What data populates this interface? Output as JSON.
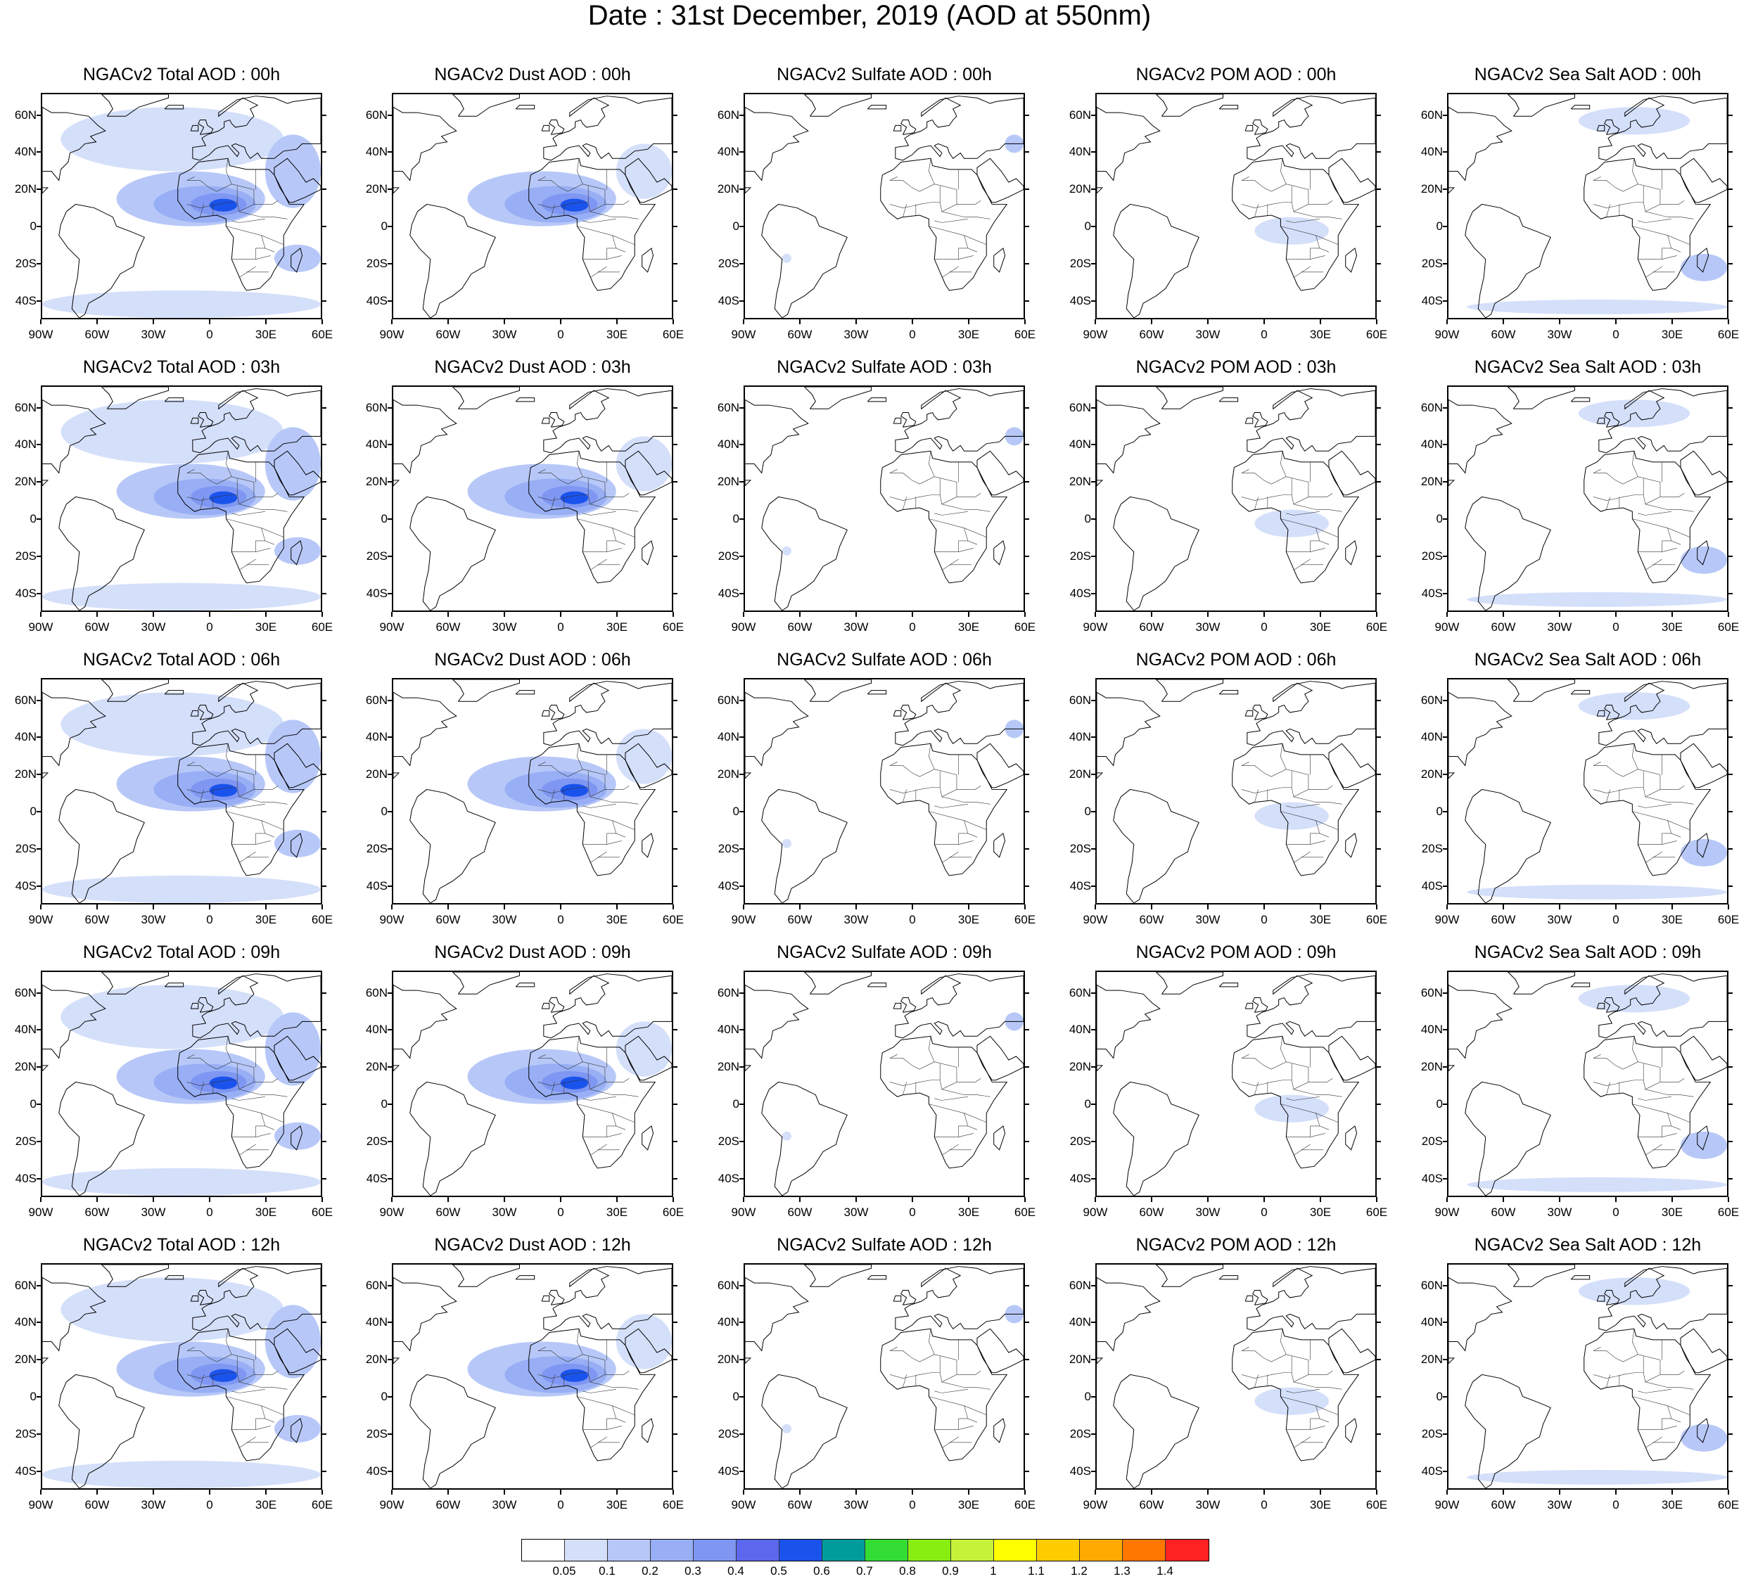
{
  "title": "Date : 31st December, 2019 (AOD at 550nm)",
  "axes": {
    "lat_labels": [
      "60N",
      "40N",
      "20N",
      "0",
      "20S",
      "40S"
    ],
    "lat_values": [
      60,
      40,
      20,
      0,
      -20,
      -40
    ],
    "lon_labels": [
      "90W",
      "60W",
      "30W",
      "0",
      "30E",
      "60E"
    ],
    "lon_values": [
      -90,
      -60,
      -30,
      0,
      30,
      60
    ],
    "lon_range": [
      -90,
      60
    ],
    "lat_range": [
      -50,
      72
    ]
  },
  "panels": [
    [
      "NGACv2 Total AOD : 00h",
      "NGACv2 Dust AOD : 00h",
      "NGACv2 Sulfate AOD : 00h",
      "NGACv2 POM AOD : 00h",
      "NGACv2 Sea Salt AOD : 00h"
    ],
    [
      "NGACv2 Total AOD : 03h",
      "NGACv2 Dust AOD : 03h",
      "NGACv2 Sulfate AOD : 03h",
      "NGACv2 POM AOD : 03h",
      "NGACv2 Sea Salt AOD : 03h"
    ],
    [
      "NGACv2 Total AOD : 06h",
      "NGACv2 Dust AOD : 06h",
      "NGACv2 Sulfate AOD : 06h",
      "NGACv2 POM AOD : 06h",
      "NGACv2 Sea Salt AOD : 06h"
    ],
    [
      "NGACv2 Total AOD : 09h",
      "NGACv2 Dust AOD : 09h",
      "NGACv2 Sulfate AOD : 09h",
      "NGACv2 POM AOD : 09h",
      "NGACv2 Sea Salt  AOD : 09h"
    ],
    [
      "NGACv2 Total AOD  : 12h",
      "NGACv2 Dust AOD : 12h",
      "NGACv2 Sulfate AOD : 12h",
      "NGACv2 POM  AOD : 12h",
      "NGACv2 Sea Salt  AOD : 12h"
    ]
  ],
  "panel_types": [
    "total",
    "dust",
    "sulfate",
    "pom",
    "seasalt"
  ],
  "colorbar": {
    "colors": [
      "#ffffff",
      "#d4dffa",
      "#b7c8f8",
      "#98aff5",
      "#7f97f2",
      "#5c67ee",
      "#1a53ec",
      "#009b9b",
      "#33dd33",
      "#88ee11",
      "#c7f23a",
      "#ffff00",
      "#ffcc00",
      "#ffaa00",
      "#ff7700",
      "#ff2222"
    ],
    "labels": [
      "0.05",
      "0.1",
      "0.2",
      "0.3",
      "0.4",
      "0.5",
      "0.6",
      "0.7",
      "0.8",
      "0.9",
      "1",
      "1.1",
      "1.2",
      "1.3",
      "1.4"
    ]
  },
  "aerosol_levels": {
    "note_colors_index": "index into colorbar.colors",
    "total": [
      {
        "lon": [
          -50,
          30
        ],
        "lat": [
          0,
          30
        ],
        "level": 2
      },
      {
        "lon": [
          -30,
          25
        ],
        "lat": [
          2,
          22
        ],
        "level": 3
      },
      {
        "lon": [
          -10,
          20
        ],
        "lat": [
          6,
          18
        ],
        "level": 4
      },
      {
        "lon": [
          0,
          15
        ],
        "lat": [
          8,
          15
        ],
        "level": 6
      },
      {
        "lon": [
          -90,
          60
        ],
        "lat": [
          -50,
          -35
        ],
        "level": 1
      },
      {
        "lon": [
          -80,
          40
        ],
        "lat": [
          30,
          65
        ],
        "level": 1
      },
      {
        "lon": [
          35,
          60
        ],
        "lat": [
          -25,
          -10
        ],
        "level": 2
      },
      {
        "lon": [
          30,
          60
        ],
        "lat": [
          10,
          50
        ],
        "level": 2
      }
    ],
    "dust": [
      {
        "lon": [
          -50,
          30
        ],
        "lat": [
          0,
          30
        ],
        "level": 2
      },
      {
        "lon": [
          -30,
          25
        ],
        "lat": [
          2,
          22
        ],
        "level": 3
      },
      {
        "lon": [
          -10,
          20
        ],
        "lat": [
          6,
          18
        ],
        "level": 4
      },
      {
        "lon": [
          0,
          15
        ],
        "lat": [
          8,
          15
        ],
        "level": 6
      },
      {
        "lon": [
          30,
          60
        ],
        "lat": [
          15,
          45
        ],
        "level": 1
      }
    ],
    "sulfate": [
      {
        "lon": [
          50,
          60
        ],
        "lat": [
          40,
          50
        ],
        "level": 2
      },
      {
        "lon": [
          -70,
          -65
        ],
        "lat": [
          -20,
          -15
        ],
        "level": 1
      }
    ],
    "pom": [
      {
        "lon": [
          -5,
          35
        ],
        "lat": [
          -10,
          5
        ],
        "level": 1
      }
    ],
    "seasalt": [
      {
        "lon": [
          -20,
          40
        ],
        "lat": [
          50,
          65
        ],
        "level": 1
      },
      {
        "lon": [
          35,
          60
        ],
        "lat": [
          -30,
          -15
        ],
        "level": 2
      },
      {
        "lon": [
          -80,
          60
        ],
        "lat": [
          -48,
          -40
        ],
        "level": 1
      }
    ]
  }
}
